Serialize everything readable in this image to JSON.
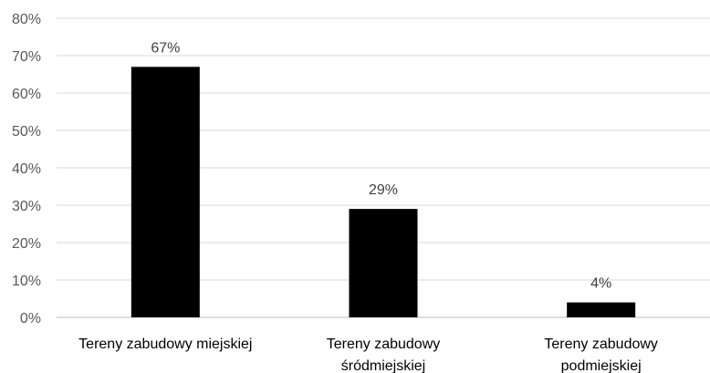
{
  "chart_data": {
    "type": "bar",
    "title": "",
    "xlabel": "",
    "ylabel": "",
    "categories": [
      [
        "Tereny zabudowy miejskiej"
      ],
      [
        "Tereny zabudowy",
        "śródmiejskiej"
      ],
      [
        "Tereny zabudowy",
        "podmiejskiej"
      ]
    ],
    "values": [
      67,
      29,
      4
    ],
    "data_labels": [
      "67%",
      "29%",
      "4%"
    ],
    "ylim": [
      0,
      80
    ],
    "yticks": [
      0,
      10,
      20,
      30,
      40,
      50,
      60,
      70,
      80
    ],
    "ytick_labels": [
      "0%",
      "10%",
      "20%",
      "30%",
      "40%",
      "50%",
      "60%",
      "70%",
      "80%"
    ],
    "grid": true,
    "legend": "none",
    "colors": {
      "bar": "#000000",
      "grid": "#d9d9d9",
      "axis": "#bfbfbf",
      "tick_text": "#595959",
      "label_text": "#404040"
    }
  }
}
